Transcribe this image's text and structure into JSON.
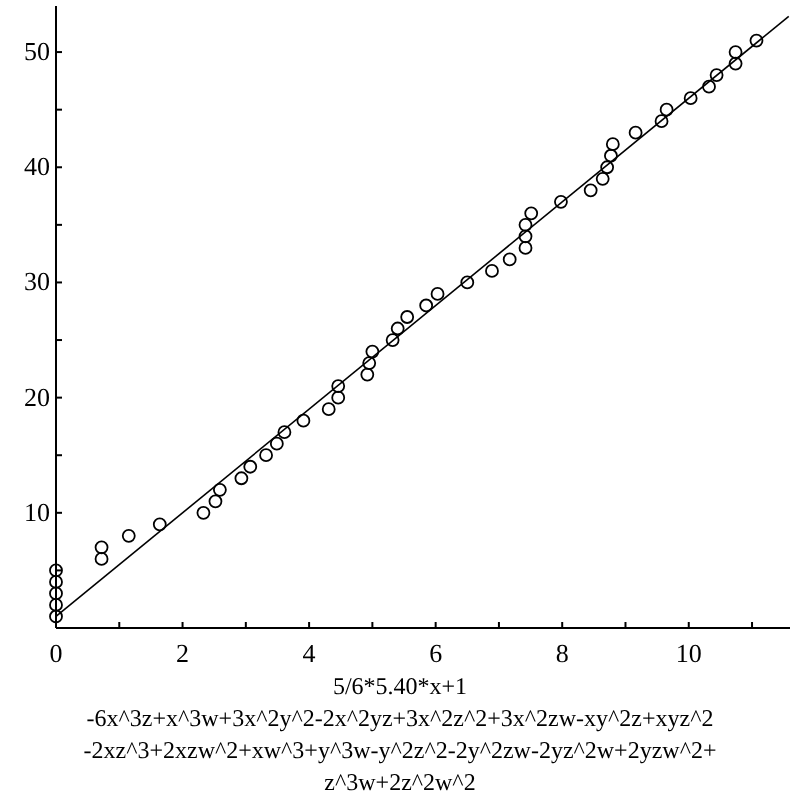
{
  "chart_data": {
    "type": "scatter",
    "xlabel": "5/6*5.40*x+1\n-6x^3z+x^3w+3x^2y^2-2x^2yz+3x^2z^2+3x^2zw-xy^2z+xyz^2\n-2xz^3+2xzw^2+xw^3+y^3w-y^2z^2-2y^2zw-2yz^2w+2yzw^2+\nz^3w+2z^2w^2",
    "xlim": [
      0,
      11.6
    ],
    "ylim": [
      0,
      54
    ],
    "xticks": [
      0,
      {
        "value": 1,
        "label": null
      },
      2,
      {
        "value": 3,
        "label": null
      },
      4,
      {
        "value": 5,
        "label": null
      },
      6,
      {
        "value": 7,
        "label": null
      },
      8,
      {
        "value": 9,
        "label": null
      },
      10,
      {
        "value": 11,
        "label": null
      }
    ],
    "yticks": [
      {
        "value": 5,
        "label": null
      },
      10,
      {
        "value": 15,
        "label": null
      },
      20,
      {
        "value": 25,
        "label": null
      },
      30,
      {
        "value": 35,
        "label": null
      },
      40,
      {
        "value": 45,
        "label": null
      },
      50
    ],
    "grid": false,
    "series": [
      {
        "color": "#000000",
        "marker": "circle",
        "x": [
          0,
          0,
          0,
          0,
          0,
          0.72,
          0.72,
          1.15,
          1.64,
          2.33,
          2.52,
          2.59,
          2.93,
          3.07,
          3.32,
          3.49,
          3.61,
          3.91,
          4.31,
          4.46,
          4.46,
          4.92,
          4.95,
          5.0,
          5.32,
          5.4,
          5.55,
          5.85,
          6.03,
          6.5,
          6.89,
          7.17,
          7.42,
          7.42,
          7.42,
          7.51,
          7.98,
          8.45,
          8.64,
          8.71,
          8.77,
          8.8,
          9.16,
          9.57,
          9.65,
          10.03,
          10.32,
          10.44,
          10.74,
          10.74,
          11.07
        ],
        "values": [
          1,
          2,
          3,
          4,
          5,
          6,
          7,
          8,
          9,
          10,
          11,
          12,
          13,
          14,
          15,
          16,
          17,
          18,
          19,
          20,
          21,
          22,
          23,
          24,
          25,
          26,
          27,
          28,
          29,
          30,
          31,
          32,
          33,
          34,
          35,
          36,
          37,
          38,
          39,
          40,
          41,
          42,
          43,
          44,
          45,
          46,
          47,
          48,
          49,
          50,
          51
        ]
      },
      {
        "type": "line",
        "color": "#000000",
        "marker": "none",
        "line_style": "solid",
        "x": [
          0,
          11.58
        ],
        "values": [
          1,
          53.1
        ]
      }
    ]
  }
}
